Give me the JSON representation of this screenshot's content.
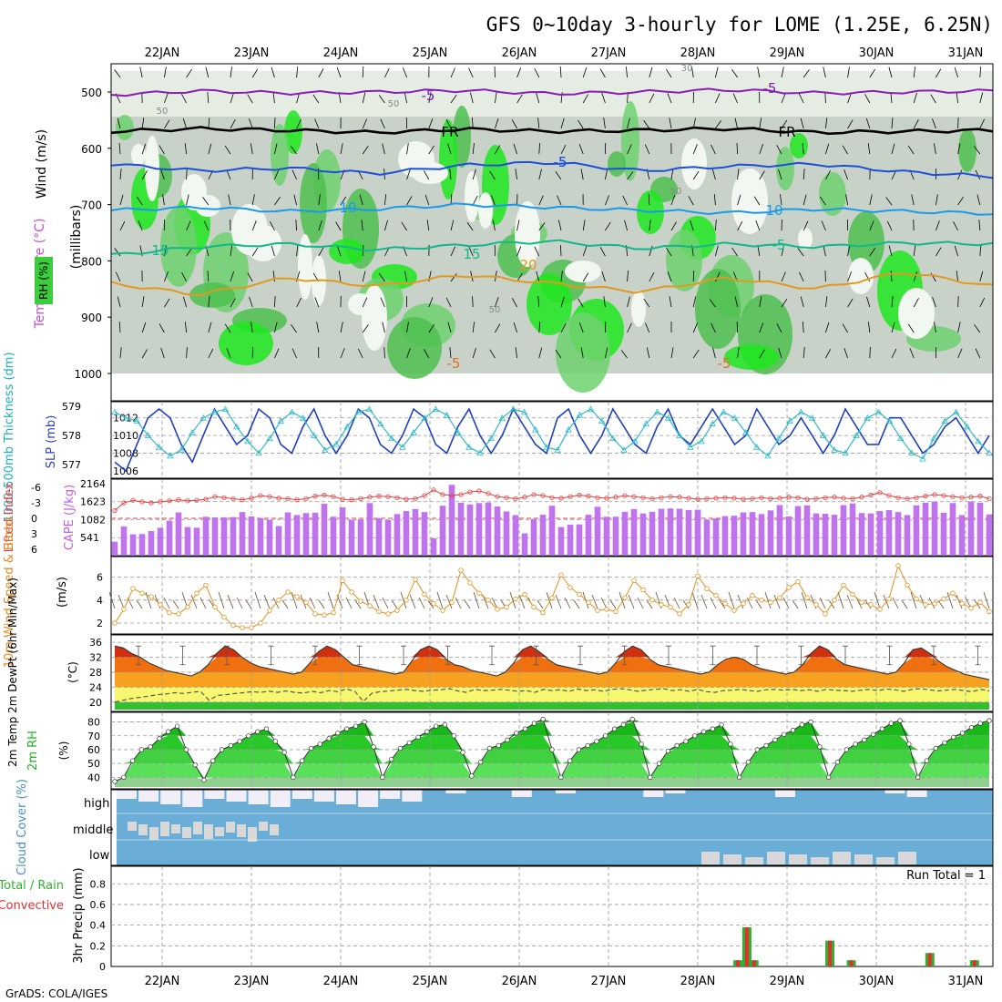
{
  "chart_data": {
    "type": "meteogram",
    "title": "GFS 0~10day 3-hourly for LOME (1.25E, 6.25N)",
    "credit": "GrADS: COLA/IGES",
    "dates": [
      "22JAN",
      "23JAN",
      "24JAN",
      "25JAN",
      "26JAN",
      "27JAN",
      "28JAN",
      "29JAN",
      "30JAN",
      "31JAN"
    ],
    "upper_air": {
      "ylabel": "(millibars)",
      "side_labels": [
        "RH (%)",
        "Temperature (°C)",
        "Wind (m/s)"
      ],
      "pressure_ticks": [
        500,
        600,
        700,
        800,
        900,
        1000
      ],
      "contour_labels": [
        "-5",
        "-5",
        "FR",
        "FR",
        "-5",
        "-5",
        "10",
        "10",
        "15",
        "15",
        "-5",
        "20",
        "-5",
        "-5",
        "50",
        "50",
        "50",
        "50",
        "30"
      ],
      "temperature_levels": [
        {
          "label": "-5",
          "p": [
            505,
            498,
            502,
            500,
            497,
            503,
            500,
            496,
            502,
            500,
            498
          ]
        },
        {
          "label": "FR",
          "p": [
            570,
            565,
            568,
            572,
            566,
            570,
            568,
            565,
            572,
            570,
            568
          ]
        },
        {
          "label": "-5",
          "p": [
            628,
            640,
            635,
            645,
            630,
            625,
            640,
            632,
            628,
            642,
            650
          ]
        },
        {
          "label": "10",
          "p": [
            710,
            705,
            712,
            708,
            700,
            705,
            710,
            715,
            708,
            712,
            716
          ]
        },
        {
          "label": "15",
          "p": [
            790,
            775,
            770,
            780,
            772,
            765,
            778,
            770,
            775,
            768,
            770
          ]
        },
        {
          "label": "20",
          "p": [
            840,
            860,
            830,
            845,
            825,
            840,
            855,
            830,
            850,
            820,
            845
          ]
        }
      ]
    },
    "thickness_slp": {
      "ylabel_left": "1000-500mb Thickness (dm)",
      "ylabel_right": "SLP (mb)",
      "thickness_ticks": [
        577,
        578,
        579
      ],
      "slp_ticks": [
        1006,
        1008,
        1010,
        1012
      ],
      "slp": [
        1007,
        1006,
        1009,
        1012,
        1013,
        1012,
        1009,
        1007,
        1010,
        1013,
        1011,
        1009,
        1010,
        1013,
        1012,
        1009,
        1008,
        1011,
        1013,
        1010,
        1008,
        1010,
        1013,
        1012,
        1009,
        1008,
        1010,
        1013,
        1012,
        1009,
        1008,
        1011,
        1013,
        1010,
        1008,
        1010,
        1013,
        1011,
        1009,
        1008,
        1012,
        1013,
        1010,
        1008,
        1010,
        1013,
        1011,
        1009,
        1008,
        1011,
        1013,
        1010,
        1009,
        1011,
        1013,
        1011,
        1009,
        1010,
        1013,
        1011,
        1009,
        1010,
        1012,
        1010,
        1008,
        1010,
        1013,
        1011,
        1009,
        1009,
        1012,
        1012,
        1010,
        1008,
        1009,
        1011,
        1012,
        1010,
        1008,
        1010
      ],
      "thickness": [
        578.8,
        578.6,
        578.5,
        578.0,
        577.6,
        577.3,
        577.5,
        578.1,
        578.6,
        578.8,
        578.9,
        578.3,
        577.8,
        577.4,
        577.9,
        578.5,
        578.8,
        578.6,
        578.0,
        577.5,
        577.7,
        578.3,
        578.8,
        578.9,
        578.4,
        577.9,
        577.6,
        578.1,
        578.6,
        578.9,
        578.7,
        578.1,
        577.6,
        577.4,
        577.9,
        578.6,
        578.9,
        578.8,
        578.2,
        577.6,
        577.5,
        578.2,
        578.7,
        578.9,
        578.5,
        577.9,
        577.5,
        577.8,
        578.4,
        578.8,
        578.6,
        578.0,
        577.6,
        577.8,
        578.4,
        578.8,
        578.6,
        578.1,
        577.6,
        577.3,
        577.9,
        578.5,
        578.8,
        578.6,
        578.0,
        577.5,
        577.4,
        578.0,
        578.6,
        578.8,
        578.5,
        577.9,
        577.4,
        577.2,
        577.9,
        578.5,
        578.8,
        578.3,
        577.8,
        577.4
      ]
    },
    "cape_li": {
      "ylabel_left": "Lifted Index",
      "ylabel_right": "CAPE (J/kg)",
      "li_ticks": [
        "-6",
        "-3",
        "0",
        "3",
        "6"
      ],
      "cape_ticks": [
        541,
        1082,
        1623,
        2164
      ],
      "cape": [
        420,
        880,
        640,
        650,
        740,
        840,
        1050,
        1300,
        860,
        840,
        1170,
        1150,
        1150,
        1160,
        1310,
        1180,
        1130,
        1080,
        890,
        1300,
        1220,
        1280,
        1290,
        1560,
        1170,
        1450,
        1080,
        1090,
        1580,
        1130,
        1070,
        1250,
        1340,
        1400,
        1310,
        520,
        1500,
        2130,
        1590,
        1540,
        1580,
        1600,
        1480,
        1330,
        1220,
        670,
        1100,
        1230,
        1500,
        860,
        930,
        940,
        1230,
        1470,
        1170,
        1170,
        1320,
        1400,
        1270,
        1320,
        1410,
        1420,
        1410,
        1370,
        1380,
        1080,
        1120,
        1190,
        1200,
        1300,
        1310,
        1250,
        1360,
        1520,
        1180,
        1490,
        1510,
        1270,
        1260,
        1230,
        1520,
        1570,
        1280,
        1270,
        1340,
        1370,
        1310,
        1220,
        1510,
        1590,
        1630,
        1290,
        1580,
        1220,
        1630,
        1590,
        1240
      ],
      "li": [
        -1.5,
        -3,
        -3.5,
        -3.2,
        -3,
        -3.2,
        -3.4,
        -3.6,
        -3.4,
        -3.5,
        -3.7,
        -4.2,
        -4.0,
        -3.8,
        -3.6,
        -3.9,
        -4.4,
        -4.2,
        -3.9,
        -3.8,
        -3.6,
        -3.8,
        -4.3,
        -4.5,
        -4.2,
        -3.7,
        -3.6,
        -3.8,
        -4.1,
        -4.3,
        -4.2,
        -4.0,
        -3.7,
        -3.8,
        -4.4,
        -5.5,
        -4.6,
        -4.4,
        -4.6,
        -5.1,
        -5.3,
        -4.8,
        -4.2,
        -4.0,
        -3.8,
        -4.1,
        -4.6,
        -4.4,
        -4.0,
        -3.9,
        -4.2,
        -4.5,
        -4.3,
        -4.0,
        -3.9,
        -4.1,
        -4.4,
        -4.2,
        -4.0,
        -3.8,
        -4.0,
        -4.2,
        -4.1,
        -3.9,
        -3.7,
        -3.8,
        -3.9,
        -4.0,
        -3.9,
        -3.7,
        -3.8,
        -4.0,
        -3.8,
        -3.9,
        -4.1,
        -4.0,
        -3.7,
        -3.8,
        -4.0,
        -4.1,
        -3.9,
        -3.8,
        -4.1,
        -4.5,
        -5.0,
        -4.4,
        -4.0,
        -3.8,
        -4.0,
        -4.3,
        -4.6,
        -4.4,
        -4.2,
        -4.0,
        -4.1,
        -4.3,
        -3.8
      ]
    },
    "wind": {
      "ylabel": "10m Wind Speed & Barbs",
      "unit": "(m/s)",
      "ticks": [
        2,
        4,
        6
      ],
      "speed": [
        2.0,
        3.2,
        5.0,
        4.6,
        4.3,
        3.6,
        2.9,
        2.8,
        3.4,
        4.6,
        5.3,
        3.4,
        2.5,
        1.8,
        1.6,
        1.6,
        2.0,
        3.1,
        4.0,
        4.7,
        4.3,
        3.8,
        2.8,
        2.7,
        2.9,
        5.7,
        4.7,
        3.9,
        3.5,
        3.0,
        2.8,
        3.1,
        4.0,
        5.8,
        4.5,
        3.7,
        3.1,
        3.8,
        6.6,
        5.5,
        4.6,
        4.0,
        3.2,
        3.4,
        4.1,
        4.5,
        3.4,
        2.9,
        4.2,
        6.2,
        5.1,
        4.5,
        3.8,
        3.1,
        3.2,
        3.0,
        4.2,
        5.7,
        4.9,
        4.0,
        3.6,
        3.4,
        2.8,
        3.6,
        6.1,
        5.0,
        4.4,
        3.7,
        3.1,
        3.7,
        4.4,
        4.0,
        3.8,
        4.2,
        5.1,
        5.6,
        4.2,
        3.6,
        2.8,
        4.0,
        5.3,
        4.5,
        3.8,
        3.6,
        3.2,
        4.1,
        7.0,
        5.3,
        4.1,
        3.6,
        3.7,
        4.1,
        4.6,
        3.7,
        3.3,
        3.8,
        3.0
      ]
    },
    "temp2m": {
      "ylabel": "2m Temp 2m DewPt (6hr Min/Max)",
      "unit": "(°C)",
      "ticks": [
        20,
        24,
        28,
        32,
        36
      ],
      "temp": [
        35,
        34.5,
        33,
        32,
        30.5,
        29.5,
        28.5,
        28,
        27.5,
        27,
        28,
        30,
        33,
        35,
        34,
        32,
        30.5,
        29.5,
        29,
        28.5,
        28,
        27.5,
        28,
        30.5,
        33.5,
        35,
        34,
        32,
        30,
        29.5,
        29,
        28.5,
        28,
        27.5,
        28,
        31,
        34,
        35,
        34,
        31.5,
        30,
        29.5,
        28.5,
        28,
        27.5,
        27,
        28,
        30.5,
        34,
        35,
        33.5,
        31.5,
        30,
        29.5,
        29,
        28.5,
        28,
        27.5,
        28,
        30.5,
        33.5,
        35,
        34,
        31.5,
        30,
        29.5,
        29,
        28.5,
        28,
        27.5,
        28,
        30,
        31.5,
        32,
        31.5,
        30,
        29,
        28.5,
        28,
        27.5,
        28,
        30,
        33,
        35,
        34,
        31.5,
        30,
        29.5,
        29,
        28.5,
        28,
        27.5,
        28,
        30.5,
        34,
        34.5,
        33,
        31,
        29.5,
        28.5,
        27.5,
        27,
        26.5,
        26
      ],
      "dew": [
        20,
        20.5,
        21,
        21.3,
        21.6,
        22,
        22.2,
        22.5,
        22.3,
        22.6,
        22.9,
        20.5,
        21.8,
        22,
        22.3,
        22.5,
        22.8,
        22.6,
        22.9,
        22.6,
        23,
        22.6,
        22.4,
        22.9,
        22.5,
        23.1,
        22.8,
        23.5,
        22.9,
        20.2,
        22.4,
        22.8,
        23,
        23.2,
        23.4,
        23.1,
        22.9,
        23.2,
        23.3,
        23.6,
        23,
        22.6,
        23.4,
        23.1,
        23.2,
        23.4,
        23.2,
        22.9,
        23.1,
        22.6,
        23.4,
        23.1,
        23.3,
        22.9,
        23.5,
        23.1,
        23.3,
        22.9,
        23.4,
        23.6,
        23.3,
        22.9,
        23.2,
        23.4,
        23.6,
        23.1,
        23.3,
        22.9,
        23.4,
        22.8,
        22.6,
        23.1,
        23.2,
        23.4,
        23.1,
        22.9,
        23.3,
        23.4,
        23.2,
        23.4,
        23.1,
        23.3,
        22.9,
        23.4,
        23.2,
        23.1,
        22.9,
        23.2,
        23.4,
        23.1,
        23.5,
        23.3,
        22.9,
        23.4,
        23.6,
        23.3,
        23.0,
        23.2,
        23.4,
        23.1,
        22.8,
        23.4,
        23.0
      ]
    },
    "rh2m": {
      "ylabel": "2m RH",
      "unit": "(%)",
      "ticks": [
        40,
        50,
        60,
        70,
        80
      ],
      "rh": [
        37,
        40,
        52,
        60,
        62,
        68,
        73,
        77,
        60,
        49,
        38,
        52,
        60,
        63,
        66,
        70,
        73,
        75,
        66,
        58,
        40,
        52,
        61,
        64,
        68,
        72,
        75,
        77,
        80,
        62,
        40,
        53,
        61,
        65,
        69,
        73,
        77,
        78,
        70,
        58,
        41,
        51,
        61,
        63,
        67,
        72,
        75,
        79,
        82,
        60,
        40,
        52,
        60,
        63,
        66,
        70,
        75,
        78,
        82,
        64,
        40,
        50,
        59,
        63,
        66,
        70,
        73,
        75,
        78,
        64,
        40,
        51,
        60,
        63,
        67,
        71,
        74,
        78,
        80,
        62,
        40,
        51,
        60,
        64,
        67,
        71,
        75,
        79,
        81,
        64,
        40,
        52,
        61,
        65,
        69,
        72,
        76,
        79,
        81
      ]
    },
    "cloud": {
      "ylabel": "Cloud Cover (%)",
      "levels": [
        "high",
        "middle",
        "low"
      ]
    },
    "precip": {
      "ylabel": "3hr Precip (mm)",
      "legend": [
        "Total / Rain",
        "Convective"
      ],
      "run_total": "Run Total = 1",
      "ticks": [
        "0",
        "0.2",
        "0.4",
        "0.6",
        "0.8"
      ],
      "bars": [
        {
          "date_index": 6.45,
          "total": 0.06,
          "conv": 0.06
        },
        {
          "date_index": 6.55,
          "total": 0.38,
          "conv": 0.38
        },
        {
          "date_index": 6.63,
          "total": 0.06,
          "conv": 0.06
        },
        {
          "date_index": 7.48,
          "total": 0.25,
          "conv": 0.25
        },
        {
          "date_index": 7.72,
          "total": 0.06,
          "conv": 0.06
        },
        {
          "date_index": 8.6,
          "total": 0.13,
          "conv": 0.13
        },
        {
          "date_index": 9.1,
          "total": 0.06,
          "conv": 0.06
        }
      ]
    }
  }
}
